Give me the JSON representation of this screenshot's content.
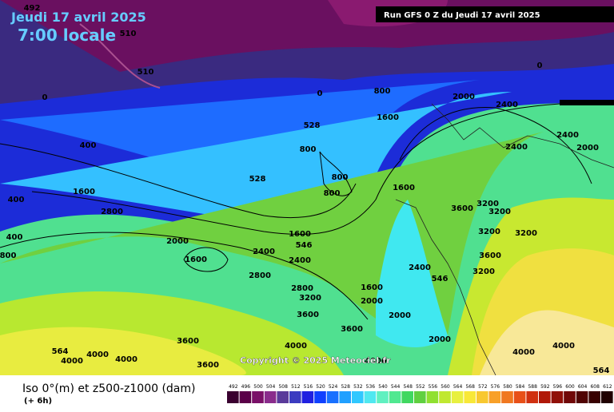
{
  "header": {
    "date": "Jeudi 17 avril 2025",
    "time": "7:00 locale",
    "run": "Run GFS 0 Z du Jeudi 17 avril 2025"
  },
  "map": {
    "copyright": "Copyright © 2025 Meteociel.fr",
    "contour_labels": [
      "492",
      "510",
      "510",
      "0",
      "0",
      "0",
      "400",
      "400",
      "400",
      "800",
      "800",
      "800",
      "800",
      "800",
      "1600",
      "1600",
      "1600",
      "1600",
      "1600",
      "1600",
      "2000",
      "2000",
      "2000",
      "2000",
      "2000",
      "2000",
      "2400",
      "2400",
      "2400",
      "2400",
      "2400",
      "2400",
      "2800",
      "2800",
      "2800",
      "3200",
      "3200",
      "3200",
      "3200",
      "3200",
      "3200",
      "3600",
      "3600",
      "3600",
      "3600",
      "3600",
      "3600",
      "4000",
      "4000",
      "4000",
      "4000",
      "4000",
      "4000",
      "4000",
      "528",
      "528",
      "546",
      "546",
      "564",
      "564"
    ]
  },
  "footer": {
    "title": "Iso 0°(m) et z500-z1000 (dam)",
    "step": "(+ 6h)"
  },
  "colorbar": {
    "ticks": [
      492,
      496,
      500,
      504,
      508,
      512,
      516,
      520,
      524,
      528,
      532,
      536,
      540,
      544,
      548,
      552,
      556,
      560,
      564,
      568,
      572,
      576,
      580,
      584,
      588,
      592,
      596,
      600,
      604,
      608,
      612
    ],
    "colors": [
      "#3a0030",
      "#5a0048",
      "#7a1068",
      "#8a2c8c",
      "#5a3a9a",
      "#3c3cc0",
      "#2020e0",
      "#1040ff",
      "#1870ff",
      "#20a0ff",
      "#30c8ff",
      "#50e8f0",
      "#60f0c0",
      "#50e890",
      "#40d860",
      "#60d040",
      "#90e030",
      "#c0e830",
      "#e8f040",
      "#f8e838",
      "#f8c830",
      "#f8a028",
      "#f07820",
      "#e85018",
      "#d03010",
      "#b01808",
      "#901008",
      "#700808",
      "#500404",
      "#380000",
      "#200000"
    ]
  }
}
